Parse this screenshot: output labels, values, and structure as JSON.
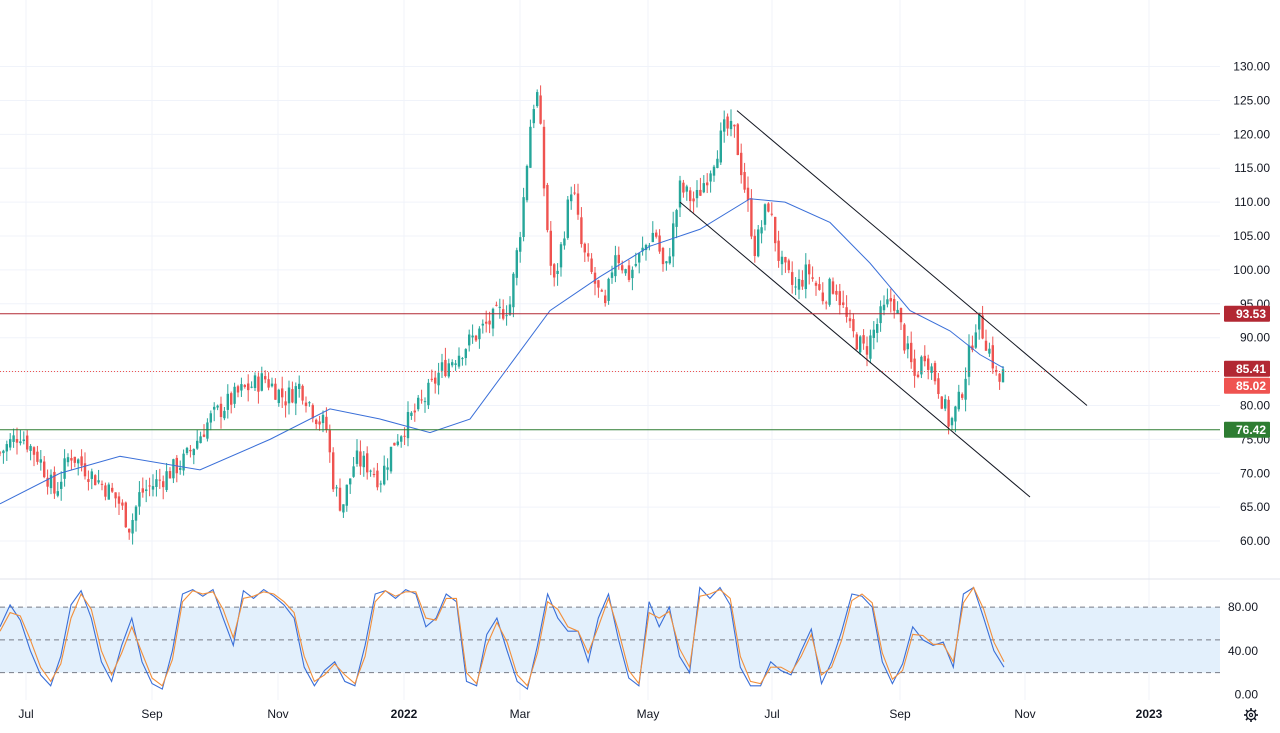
{
  "chart_data": [
    {
      "type": "candlestick",
      "title": "",
      "x_ticks": [
        "Jul",
        "Sep",
        "Nov",
        "2022",
        "Mar",
        "May",
        "Jul",
        "Sep",
        "Nov",
        "2023"
      ],
      "y_ticks": [
        "130.00",
        "125.00",
        "120.00",
        "115.00",
        "110.00",
        "105.00",
        "100.00",
        "95.00",
        "90.00",
        "85.00",
        "80.00",
        "75.00",
        "70.00",
        "65.00",
        "60.00"
      ],
      "ylim": [
        57.5,
        132.0
      ],
      "x_range": [
        "2021-07",
        "2023-01"
      ],
      "price_path": [
        {
          "t": 0,
          "v": 73
        },
        {
          "t": 20,
          "v": 76
        },
        {
          "t": 40,
          "v": 72
        },
        {
          "t": 55,
          "v": 67
        },
        {
          "t": 70,
          "v": 73
        },
        {
          "t": 90,
          "v": 70
        },
        {
          "t": 105,
          "v": 68
        },
        {
          "t": 118,
          "v": 66
        },
        {
          "t": 130,
          "v": 62
        },
        {
          "t": 140,
          "v": 67
        },
        {
          "t": 160,
          "v": 69
        },
        {
          "t": 185,
          "v": 72
        },
        {
          "t": 210,
          "v": 78
        },
        {
          "t": 240,
          "v": 82
        },
        {
          "t": 265,
          "v": 84
        },
        {
          "t": 285,
          "v": 81
        },
        {
          "t": 300,
          "v": 83
        },
        {
          "t": 318,
          "v": 78
        },
        {
          "t": 326,
          "v": 77
        },
        {
          "t": 334,
          "v": 68
        },
        {
          "t": 342,
          "v": 65
        },
        {
          "t": 355,
          "v": 72
        },
        {
          "t": 370,
          "v": 71
        },
        {
          "t": 380,
          "v": 69
        },
        {
          "t": 395,
          "v": 75
        },
        {
          "t": 410,
          "v": 78
        },
        {
          "t": 425,
          "v": 81
        },
        {
          "t": 440,
          "v": 85
        },
        {
          "t": 460,
          "v": 88
        },
        {
          "t": 480,
          "v": 91
        },
        {
          "t": 495,
          "v": 93
        },
        {
          "t": 510,
          "v": 95
        },
        {
          "t": 522,
          "v": 108
        },
        {
          "t": 532,
          "v": 124
        },
        {
          "t": 538,
          "v": 126
        },
        {
          "t": 545,
          "v": 110
        },
        {
          "t": 553,
          "v": 97
        },
        {
          "t": 562,
          "v": 104
        },
        {
          "t": 572,
          "v": 113
        },
        {
          "t": 582,
          "v": 103
        },
        {
          "t": 595,
          "v": 98
        },
        {
          "t": 605,
          "v": 94
        },
        {
          "t": 615,
          "v": 103
        },
        {
          "t": 628,
          "v": 99
        },
        {
          "t": 640,
          "v": 102
        },
        {
          "t": 655,
          "v": 106
        },
        {
          "t": 665,
          "v": 99
        },
        {
          "t": 680,
          "v": 112
        },
        {
          "t": 695,
          "v": 110
        },
        {
          "t": 710,
          "v": 115
        },
        {
          "t": 725,
          "v": 121
        },
        {
          "t": 735,
          "v": 120
        },
        {
          "t": 745,
          "v": 112
        },
        {
          "t": 755,
          "v": 103
        },
        {
          "t": 768,
          "v": 110
        },
        {
          "t": 780,
          "v": 101
        },
        {
          "t": 795,
          "v": 97
        },
        {
          "t": 808,
          "v": 100
        },
        {
          "t": 822,
          "v": 96
        },
        {
          "t": 835,
          "v": 98
        },
        {
          "t": 850,
          "v": 91
        },
        {
          "t": 865,
          "v": 88
        },
        {
          "t": 880,
          "v": 93
        },
        {
          "t": 893,
          "v": 96
        },
        {
          "t": 905,
          "v": 89
        },
        {
          "t": 915,
          "v": 84
        },
        {
          "t": 925,
          "v": 88
        },
        {
          "t": 938,
          "v": 83
        },
        {
          "t": 950,
          "v": 77
        },
        {
          "t": 960,
          "v": 81
        },
        {
          "t": 970,
          "v": 88
        },
        {
          "t": 977,
          "v": 93
        },
        {
          "t": 985,
          "v": 90
        },
        {
          "t": 992,
          "v": 87
        },
        {
          "t": 998,
          "v": 83
        },
        {
          "t": 1004,
          "v": 85
        }
      ],
      "moving_average": {
        "color": "#3a6fd8",
        "points": [
          {
            "t": 0,
            "v": 65.5
          },
          {
            "t": 60,
            "v": 70
          },
          {
            "t": 120,
            "v": 72.5
          },
          {
            "t": 200,
            "v": 70.5
          },
          {
            "t": 270,
            "v": 75
          },
          {
            "t": 330,
            "v": 79.5
          },
          {
            "t": 380,
            "v": 78
          },
          {
            "t": 430,
            "v": 76
          },
          {
            "t": 470,
            "v": 78
          },
          {
            "t": 510,
            "v": 86
          },
          {
            "t": 550,
            "v": 94
          },
          {
            "t": 600,
            "v": 99
          },
          {
            "t": 650,
            "v": 103.5
          },
          {
            "t": 700,
            "v": 106
          },
          {
            "t": 750,
            "v": 110.5
          },
          {
            "t": 785,
            "v": 110
          },
          {
            "t": 830,
            "v": 107
          },
          {
            "t": 870,
            "v": 101
          },
          {
            "t": 910,
            "v": 94
          },
          {
            "t": 950,
            "v": 91
          },
          {
            "t": 980,
            "v": 87.5
          },
          {
            "t": 1004,
            "v": 85.5
          }
        ]
      },
      "horizontal_levels": [
        {
          "value": 93.53,
          "label": "93.53",
          "color": "#b22833",
          "style": "solid"
        },
        {
          "value": 85.41,
          "label": "85.41",
          "color": "#b22833",
          "style": "none"
        },
        {
          "value": 85.02,
          "label": "85.02",
          "color": "#ef5350",
          "style": "dotted"
        },
        {
          "value": 76.42,
          "label": "76.42",
          "color": "#2e7d32",
          "style": "solid"
        }
      ],
      "trend_channel": {
        "color": "#131722",
        "upper": [
          {
            "t": 737,
            "v": 123.5
          },
          {
            "t": 1087,
            "v": 80
          }
        ],
        "lower": [
          {
            "t": 680,
            "v": 110
          },
          {
            "t": 1030,
            "v": 66.5
          }
        ]
      },
      "colors": {
        "up": "#26a69a",
        "down": "#ef5350",
        "grid": "#f0f3fa"
      }
    },
    {
      "type": "line",
      "indicator": "stochastic",
      "y_ticks": [
        "80.00",
        "40.00",
        "0.00"
      ],
      "ylim": [
        -5,
        103
      ],
      "levels": [
        80,
        50,
        20
      ],
      "band": [
        20,
        80
      ],
      "series": [
        {
          "color": "#3a6fd8",
          "values": [
            62,
            82,
            68,
            40,
            18,
            8,
            35,
            82,
            95,
            70,
            30,
            12,
            45,
            70,
            30,
            10,
            5,
            40,
            92,
            96,
            90,
            96,
            70,
            45,
            95,
            88,
            96,
            90,
            82,
            70,
            25,
            8,
            22,
            30,
            12,
            8,
            45,
            92,
            95,
            88,
            96,
            92,
            62,
            70,
            92,
            85,
            12,
            8,
            55,
            70,
            40,
            12,
            5,
            45,
            92,
            70,
            58,
            58,
            30,
            70,
            92,
            50,
            15,
            8,
            85,
            62,
            80,
            35,
            20,
            98,
            88,
            98,
            82,
            25,
            8,
            8,
            30,
            22,
            18,
            40,
            60,
            10,
            30,
            58,
            92,
            90,
            80,
            30,
            10,
            28,
            62,
            50,
            45,
            48,
            25,
            92,
            98,
            70,
            40,
            25
          ]
        },
        {
          "color": "#f28f3b",
          "values": [
            58,
            75,
            72,
            50,
            25,
            12,
            28,
            70,
            92,
            78,
            40,
            18,
            38,
            62,
            38,
            15,
            8,
            32,
            85,
            95,
            92,
            94,
            78,
            52,
            88,
            90,
            94,
            92,
            85,
            75,
            35,
            12,
            18,
            28,
            18,
            10,
            35,
            85,
            95,
            90,
            94,
            94,
            70,
            68,
            88,
            88,
            20,
            10,
            45,
            66,
            48,
            18,
            8,
            38,
            85,
            78,
            62,
            58,
            38,
            62,
            88,
            58,
            22,
            10,
            75,
            70,
            76,
            42,
            25,
            90,
            92,
            96,
            88,
            35,
            12,
            10,
            25,
            25,
            20,
            35,
            55,
            18,
            25,
            50,
            86,
            92,
            84,
            38,
            14,
            22,
            55,
            54,
            46,
            46,
            30,
            84,
            98,
            78,
            48,
            30
          ]
        }
      ]
    }
  ]
}
